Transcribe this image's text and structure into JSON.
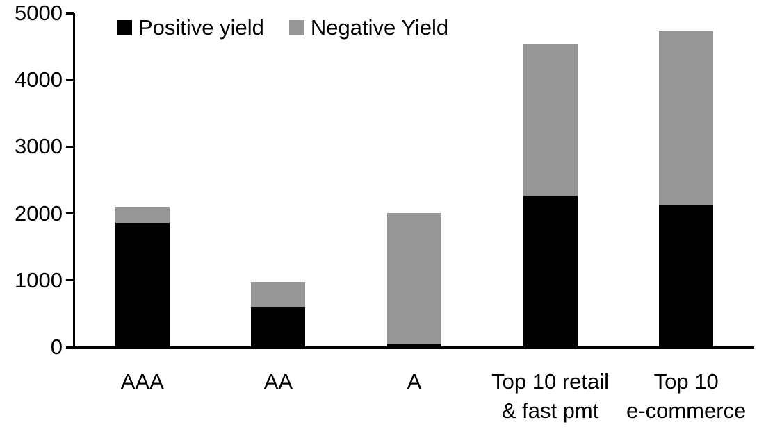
{
  "chart_data": {
    "type": "bar",
    "stacked": true,
    "title": "",
    "categories": [
      {
        "label": "AAA",
        "lines": [
          "AAA"
        ]
      },
      {
        "label": "AA",
        "lines": [
          "AA"
        ]
      },
      {
        "label": "A",
        "lines": [
          "A"
        ]
      },
      {
        "label": "Top 10 retail & fast pmt",
        "lines": [
          "Top 10 retail",
          "& fast pmt"
        ]
      },
      {
        "label": "Top 10 e-commerce",
        "lines": [
          "Top 10",
          "e-commerce"
        ]
      }
    ],
    "series": [
      {
        "name": "Positive yield",
        "color": "#000000",
        "values": [
          1860,
          600,
          40,
          2270,
          2120
        ]
      },
      {
        "name": "Negative Yield",
        "color": "#969696",
        "values": [
          240,
          380,
          1970,
          2260,
          2610
        ]
      }
    ],
    "ylim": [
      0,
      5000
    ],
    "yticks": [
      0,
      1000,
      2000,
      3000,
      4000,
      5000
    ],
    "xlabel": "",
    "ylabel": "",
    "legend_position": "top",
    "grid": false,
    "colors": {
      "axis": "#000000",
      "background": "#ffffff",
      "text": "#000000"
    }
  }
}
